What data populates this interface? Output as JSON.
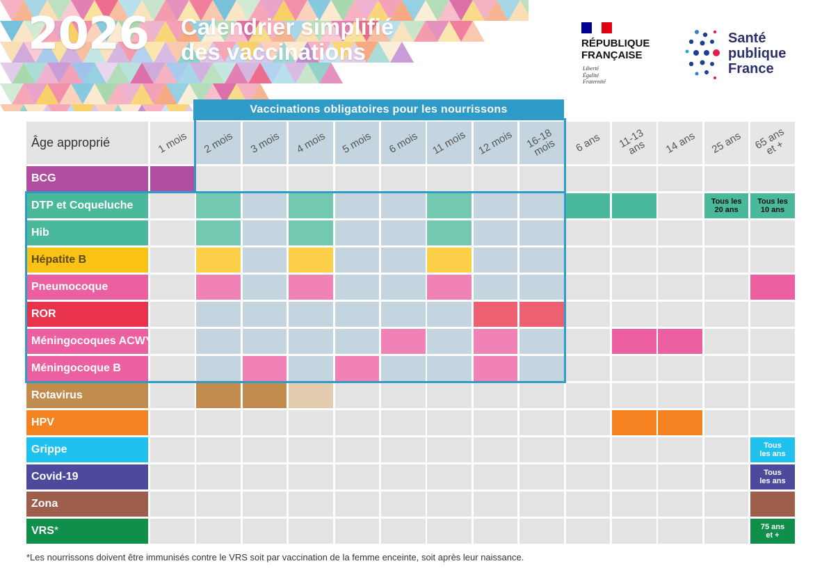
{
  "header": {
    "year": "2026",
    "title_line1": "Calendrier simplifié",
    "title_line2": "des vaccinations"
  },
  "logos": {
    "republique": {
      "line1": "RÉPUBLIQUE",
      "line2": "FRANÇAISE",
      "motto": [
        "Liberté",
        "Égalité",
        "Fraternité"
      ]
    },
    "spf": {
      "line1": "Santé",
      "line2": "publique",
      "line3": "France"
    }
  },
  "banner": "Vaccinations obligatoires pour les nourrissons",
  "table": {
    "age_header": "Âge approprié",
    "columns": [
      "1 mois",
      "2 mois",
      "3 mois",
      "4 mois",
      "5 mois",
      "6 mois",
      "11 mois",
      "12 mois",
      "16-18\nmois",
      "6 ans",
      "11-13\nans",
      "14 ans",
      "25 ans",
      "65 ans\net +"
    ],
    "rows": [
      {
        "label": "BCG",
        "color": "#b04fa2",
        "cells": [
          0
        ]
      },
      {
        "label": "DTP et Coqueluche",
        "color": "#4ab89a",
        "cells": [
          1,
          3,
          6,
          9,
          10
        ]
      },
      {
        "label": "Hib",
        "color": "#4ab89a",
        "cells": [
          1,
          3,
          6
        ]
      },
      {
        "label": "Hépatite B",
        "color": "#fbc216",
        "text_color": "#5a4a10",
        "cells": [
          1,
          3,
          6
        ]
      },
      {
        "label": "Pneumocoque",
        "color": "#ec5fa0",
        "cells": [
          1,
          3,
          6,
          13
        ]
      },
      {
        "label": "ROR",
        "color": "#e8334a",
        "cells": [
          7,
          8
        ]
      },
      {
        "label": "Méningocoques ACWY",
        "color": "#ec5fa0",
        "cells": [
          5,
          7,
          10,
          11
        ]
      },
      {
        "label": "Méningocoque B",
        "color": "#ec5fa0",
        "cells": [
          2,
          4,
          7
        ]
      },
      {
        "label": "Rotavirus",
        "color": "#c28c4e",
        "cells": [
          1,
          2
        ],
        "light_cells": [
          3
        ]
      },
      {
        "label": "HPV",
        "color": "#f58220",
        "cells": [
          10,
          11
        ]
      },
      {
        "label": "Grippe",
        "color": "#1fc1ef",
        "cells": []
      },
      {
        "label": "Covid-19",
        "color": "#4d4a9b",
        "cells": []
      },
      {
        "label": "Zona",
        "color": "#9d5f4c",
        "cells": [
          13
        ]
      },
      {
        "label": "VRS",
        "label_suffix": "*",
        "color": "#0f8f4a",
        "cells": []
      }
    ],
    "notes": [
      {
        "row": 1,
        "col": 12,
        "text": "Tous les\n20 ans"
      },
      {
        "row": 1,
        "col": 13,
        "text": "Tous les\n10 ans"
      },
      {
        "row": 10,
        "col": 13,
        "text": "Tous\nles ans"
      },
      {
        "row": 11,
        "col": 13,
        "text": "Tous\nles ans"
      },
      {
        "row": 13,
        "col": 13,
        "text": "75 ans\net +"
      }
    ]
  },
  "mandatory_zone": {
    "first_row": 1,
    "last_row": 7,
    "first_col": 1,
    "last_col": 8
  },
  "footnote": "*Les nourrissons doivent être immunisés contre le VRS soit par vaccination de la femme enceinte, soit après leur naissance."
}
